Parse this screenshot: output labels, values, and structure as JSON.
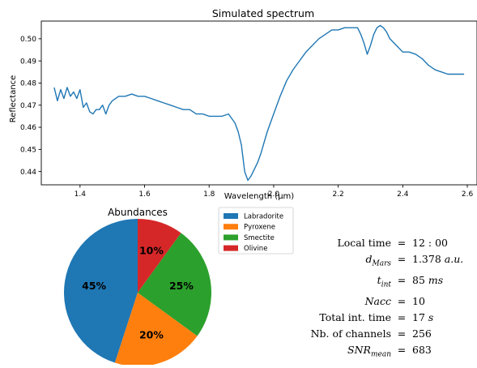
{
  "spectrum": {
    "title": "Simulated spectrum",
    "xlabel": "Wavelength (µm)",
    "ylabel": "Reflectance"
  },
  "pie": {
    "title": "Abundances"
  },
  "parameters": [
    {
      "label": "Local time",
      "symbol": "=",
      "value": "12 : 00"
    },
    {
      "label": "d_Mars",
      "symbol": "=",
      "value": "1.378 a.u."
    },
    {
      "label": "t_int",
      "symbol": "=",
      "value": "85 ms"
    },
    {
      "label": "Nacc",
      "symbol": "=",
      "value": "10"
    },
    {
      "label": "Total int. time",
      "symbol": "=",
      "value": "17 s"
    },
    {
      "label": "Nb. of channels",
      "symbol": "=",
      "value": "256"
    },
    {
      "label": "SNR_mean",
      "symbol": "=",
      "value": "683"
    }
  ],
  "colors": {
    "line": "#1f77b4",
    "labradorite": "#1f77b4",
    "pyroxene": "#ff7f0e",
    "smectite": "#2ca02c",
    "olivine": "#d62728"
  },
  "chart_data": [
    {
      "type": "line",
      "title": "Simulated spectrum",
      "xlabel": "Wavelength (µm)",
      "ylabel": "Reflectance",
      "xlim": [
        1.28,
        2.63
      ],
      "ylim": [
        0.434,
        0.508
      ],
      "xticks": [
        "1.4",
        "1.6",
        "1.8",
        "2.0",
        "2.2",
        "2.4",
        "2.6"
      ],
      "yticks": [
        "0.44",
        "0.45",
        "0.46",
        "0.47",
        "0.48",
        "0.49",
        "0.50"
      ],
      "grid": false,
      "series": [
        {
          "x": [
            1.32,
            1.33,
            1.34,
            1.35,
            1.36,
            1.37,
            1.38,
            1.39,
            1.4,
            1.41,
            1.42,
            1.43,
            1.44,
            1.45,
            1.46,
            1.47,
            1.48,
            1.49,
            1.5,
            1.52,
            1.54,
            1.56,
            1.58,
            1.6,
            1.62,
            1.64,
            1.66,
            1.68,
            1.7,
            1.72,
            1.74,
            1.76,
            1.78,
            1.8,
            1.82,
            1.84,
            1.86,
            1.88,
            1.89,
            1.9,
            1.91,
            1.92,
            1.93,
            1.94,
            1.95,
            1.96,
            1.97,
            1.98,
            2.0,
            2.02,
            2.04,
            2.06,
            2.08,
            2.1,
            2.12,
            2.14,
            2.16,
            2.18,
            2.2,
            2.22,
            2.24,
            2.26,
            2.27,
            2.28,
            2.29,
            2.3,
            2.31,
            2.32,
            2.33,
            2.34,
            2.35,
            2.36,
            2.38,
            2.4,
            2.42,
            2.44,
            2.46,
            2.48,
            2.5,
            2.52,
            2.54,
            2.56,
            2.58,
            2.59
          ],
          "y": [
            0.478,
            0.472,
            0.477,
            0.473,
            0.478,
            0.474,
            0.476,
            0.473,
            0.477,
            0.469,
            0.471,
            0.467,
            0.466,
            0.468,
            0.468,
            0.47,
            0.466,
            0.47,
            0.472,
            0.474,
            0.474,
            0.475,
            0.474,
            0.474,
            0.473,
            0.472,
            0.471,
            0.47,
            0.469,
            0.468,
            0.468,
            0.466,
            0.466,
            0.465,
            0.465,
            0.465,
            0.466,
            0.462,
            0.458,
            0.452,
            0.44,
            0.436,
            0.438,
            0.441,
            0.444,
            0.448,
            0.453,
            0.458,
            0.466,
            0.474,
            0.481,
            0.486,
            0.49,
            0.494,
            0.497,
            0.5,
            0.502,
            0.504,
            0.504,
            0.505,
            0.505,
            0.505,
            0.502,
            0.498,
            0.493,
            0.497,
            0.502,
            0.505,
            0.506,
            0.505,
            0.503,
            0.5,
            0.497,
            0.494,
            0.494,
            0.493,
            0.491,
            0.488,
            0.486,
            0.485,
            0.484,
            0.484,
            0.484,
            0.484
          ]
        }
      ]
    },
    {
      "type": "pie",
      "title": "Abundances",
      "categories": [
        "Labradorite",
        "Pyroxene",
        "Smectite",
        "Olivine"
      ],
      "values": [
        45,
        20,
        25,
        10
      ],
      "labels": [
        "45%",
        "20%",
        "25%",
        "10%"
      ],
      "legend": "right"
    }
  ]
}
